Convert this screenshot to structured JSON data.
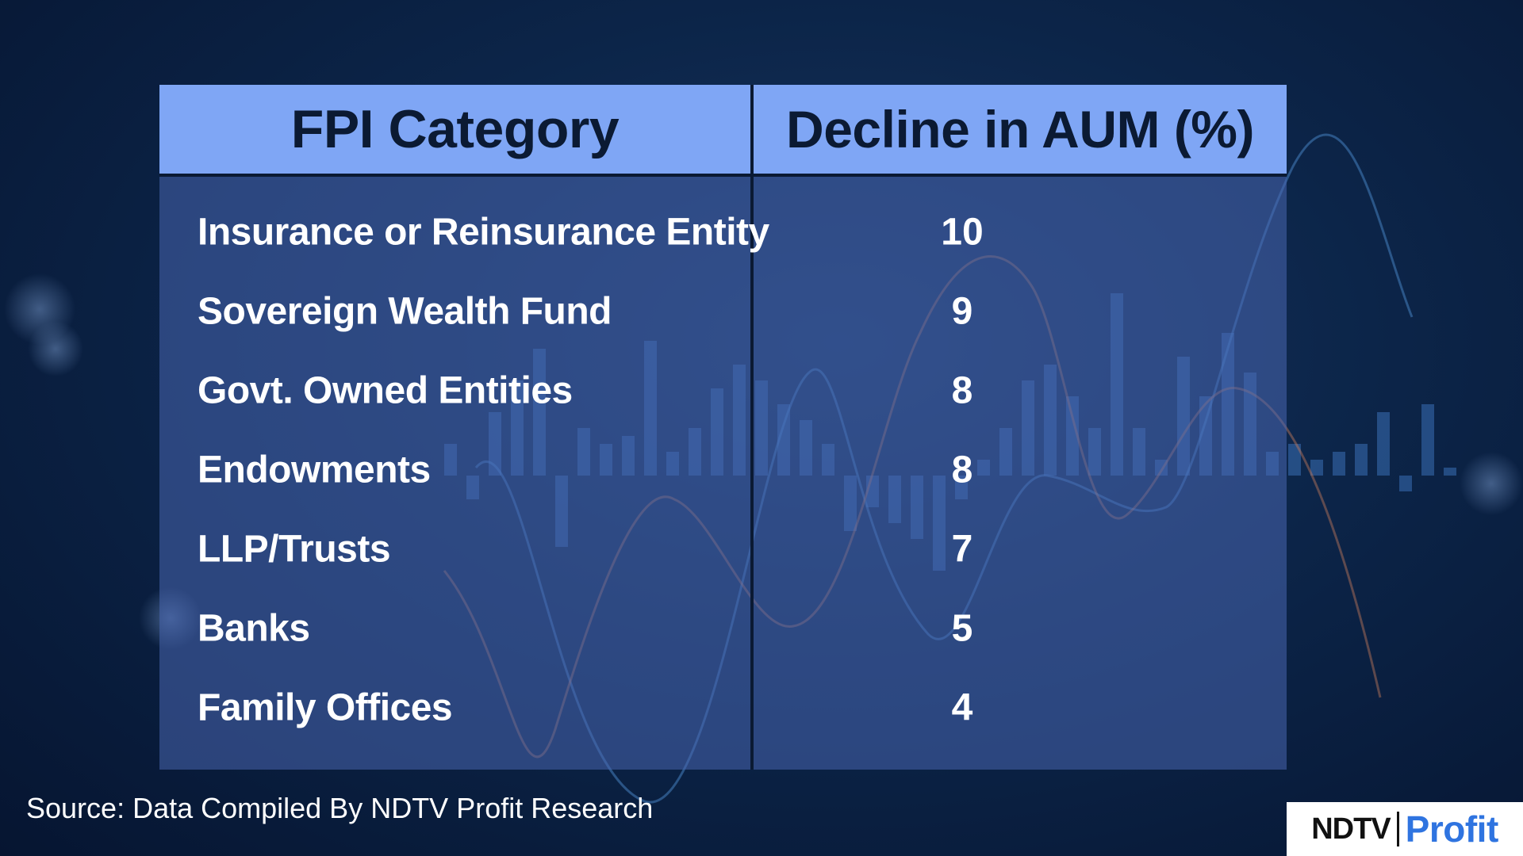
{
  "chart_data": {
    "type": "table",
    "columns": [
      "FPI Category",
      "Decline in AUM (%)"
    ],
    "rows": [
      {
        "category": "Insurance or Reinsurance Entity",
        "value": 10
      },
      {
        "category": "Sovereign Wealth Fund",
        "value": 9
      },
      {
        "category": "Govt. Owned Entities",
        "value": 8
      },
      {
        "category": "Endowments",
        "value": 8
      },
      {
        "category": "LLP/Trusts",
        "value": 7
      },
      {
        "category": "Banks",
        "value": 5
      },
      {
        "category": "Family Offices",
        "value": 4
      }
    ]
  },
  "source": "Source: Data Compiled By NDTV Profit Research",
  "logo": {
    "brand": "NDTV",
    "product": "Profit"
  },
  "colors": {
    "header_bg": "#7fa6f5",
    "header_text": "#0b1a33",
    "body_bg": "#4866b0",
    "text": "#ffffff",
    "logo_accent": "#2f74e0"
  }
}
